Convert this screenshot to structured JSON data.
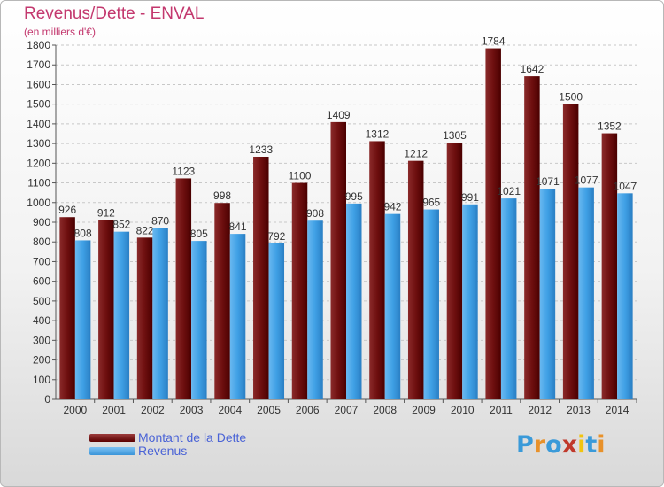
{
  "title": "Revenus/Dette - ENVAL",
  "subtitle": "(en milliers d'€)",
  "legend": {
    "debt_label": "Montant de la Dette",
    "revenue_label": "Revenus"
  },
  "logo": {
    "text": "Proxiti",
    "letters": [
      "P",
      "r",
      "o",
      "x",
      "i",
      "t",
      "i"
    ],
    "colors": [
      "#3a9ad9",
      "#e8912a",
      "#3a9ad9",
      "#c0392b",
      "#f1c40f",
      "#3a9ad9",
      "#e8912a"
    ]
  },
  "colors": {
    "debt": "#6e0f0f",
    "revenue": "#3fa0e5",
    "title": "#c3386e",
    "legend_text": "#4a63d6"
  },
  "chart_data": {
    "type": "bar",
    "categories": [
      "2000",
      "2001",
      "2002",
      "2003",
      "2004",
      "2005",
      "2006",
      "2007",
      "2008",
      "2009",
      "2010",
      "2011",
      "2012",
      "2013",
      "2014"
    ],
    "series": [
      {
        "name": "Montant de la Dette",
        "values": [
          926,
          912,
          822,
          1123,
          998,
          1233,
          1100,
          1409,
          1312,
          1212,
          1305,
          1784,
          1642,
          1500,
          1352
        ]
      },
      {
        "name": "Revenus",
        "values": [
          808,
          852,
          870,
          805,
          841,
          792,
          908,
          995,
          942,
          965,
          991,
          1021,
          1071,
          1077,
          1047
        ]
      }
    ],
    "ylim": [
      0,
      1800
    ],
    "yticks": [
      0,
      100,
      200,
      300,
      400,
      500,
      600,
      700,
      800,
      900,
      1000,
      1100,
      1200,
      1300,
      1400,
      1500,
      1600,
      1700,
      1800
    ],
    "grid": "horizontal dashed",
    "legend_position": "bottom-left"
  }
}
